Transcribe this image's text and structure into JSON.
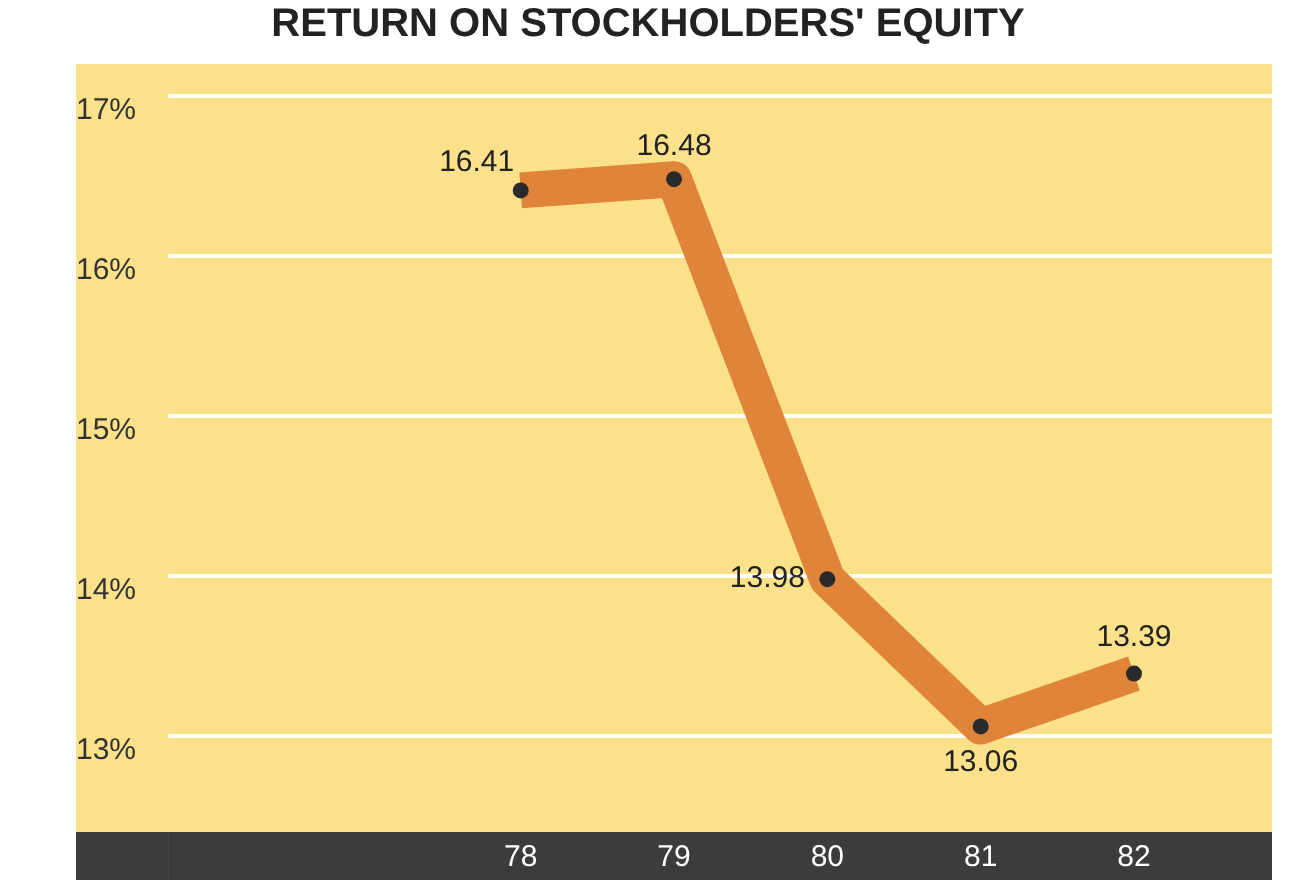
{
  "chart_data": {
    "type": "line",
    "title": "RETURN ON STOCKHOLDERS' EQUITY",
    "x": [
      78,
      79,
      80,
      81,
      82
    ],
    "series": [
      {
        "color": "#e0843a",
        "values": [
          16.41,
          16.48,
          13.98,
          13.06,
          13.39
        ]
      }
    ],
    "xlim": [
      75.7,
      82.9
    ],
    "xticks": [
      78,
      79,
      80,
      81,
      82
    ],
    "ylim": [
      12.4,
      17.2
    ],
    "yticks": [
      {
        "value": 13,
        "label": "13%"
      },
      {
        "value": 14,
        "label": "14%"
      },
      {
        "value": 15,
        "label": "15%"
      },
      {
        "value": 16,
        "label": "16%"
      },
      {
        "value": 17,
        "label": "17%"
      }
    ],
    "grid": "y",
    "legend": false,
    "marker": "circle",
    "line_style": "solid",
    "data_labels": true
  }
}
